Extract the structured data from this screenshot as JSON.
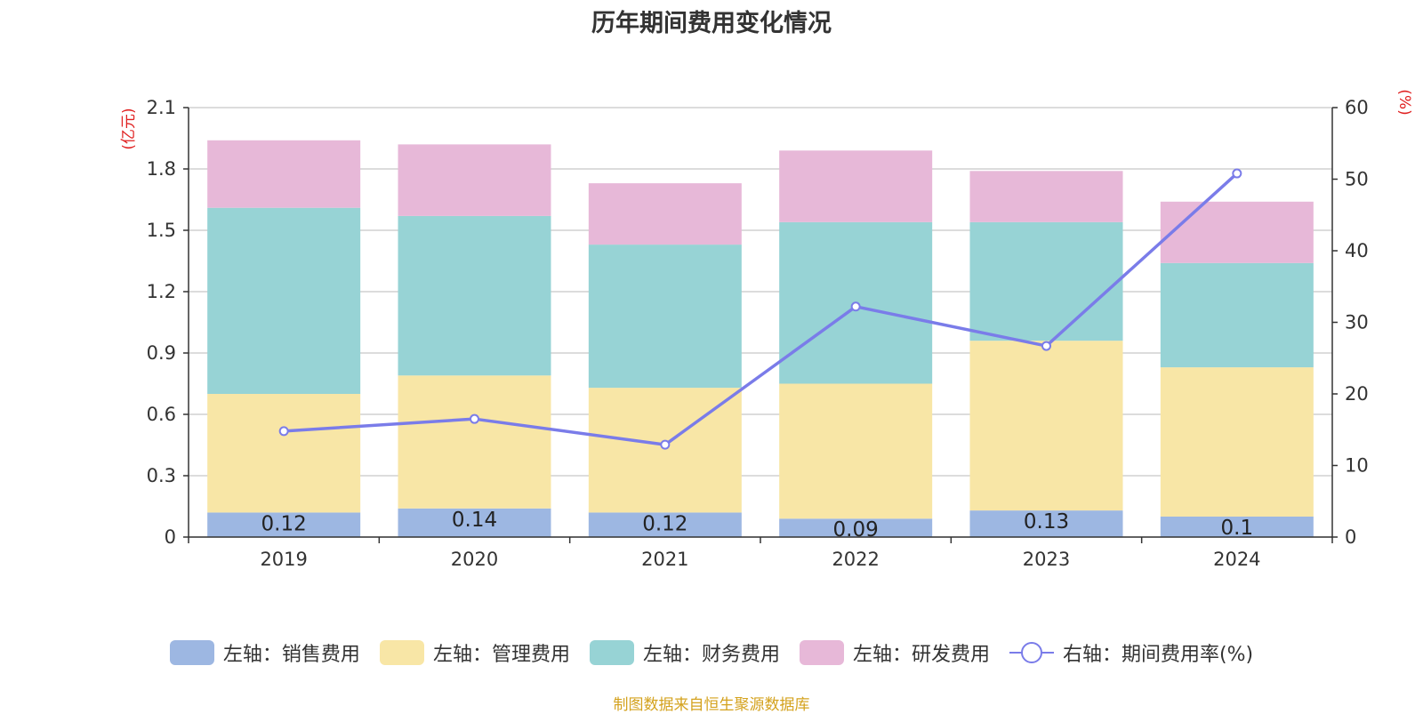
{
  "chart_data": {
    "type": "bar",
    "stacked": true,
    "title": "历年期间费用变化情况",
    "categories": [
      "2019",
      "2020",
      "2021",
      "2022",
      "2023",
      "2024"
    ],
    "y_left": {
      "unit": "(亿元)",
      "ylim": [
        0,
        2.1
      ],
      "ticks": [
        0,
        0.3,
        0.6,
        0.9,
        1.2,
        1.5,
        1.8,
        2.1
      ]
    },
    "y_right": {
      "unit": "(%)",
      "ylim": [
        0,
        60
      ],
      "ticks": [
        0,
        10,
        20,
        30,
        40,
        50,
        60
      ]
    },
    "series": [
      {
        "name": "左轴：销售费用",
        "type": "bar",
        "axis": "left",
        "color": "#9db7e2",
        "values": [
          0.12,
          0.14,
          0.12,
          0.09,
          0.13,
          0.1
        ],
        "show_labels": true
      },
      {
        "name": "左轴：管理费用",
        "type": "bar",
        "axis": "left",
        "color": "#f8e6a6",
        "values": [
          0.58,
          0.65,
          0.61,
          0.66,
          0.83,
          0.73
        ]
      },
      {
        "name": "左轴：财务费用",
        "type": "bar",
        "axis": "left",
        "color": "#97d3d5",
        "values": [
          0.91,
          0.78,
          0.7,
          0.79,
          0.58,
          0.51
        ]
      },
      {
        "name": "左轴：研发费用",
        "type": "bar",
        "axis": "left",
        "color": "#e7b8d8",
        "values": [
          0.33,
          0.35,
          0.3,
          0.35,
          0.25,
          0.3
        ]
      },
      {
        "name": "右轴：期间费用率(%)",
        "type": "line",
        "axis": "right",
        "color": "#7a7ce9",
        "values": [
          14.8,
          16.5,
          12.9,
          32.2,
          26.7,
          50.8
        ]
      }
    ],
    "grid": true,
    "legend_position": "bottom"
  },
  "footer": {
    "source": "制图数据来自恒生聚源数据库"
  }
}
